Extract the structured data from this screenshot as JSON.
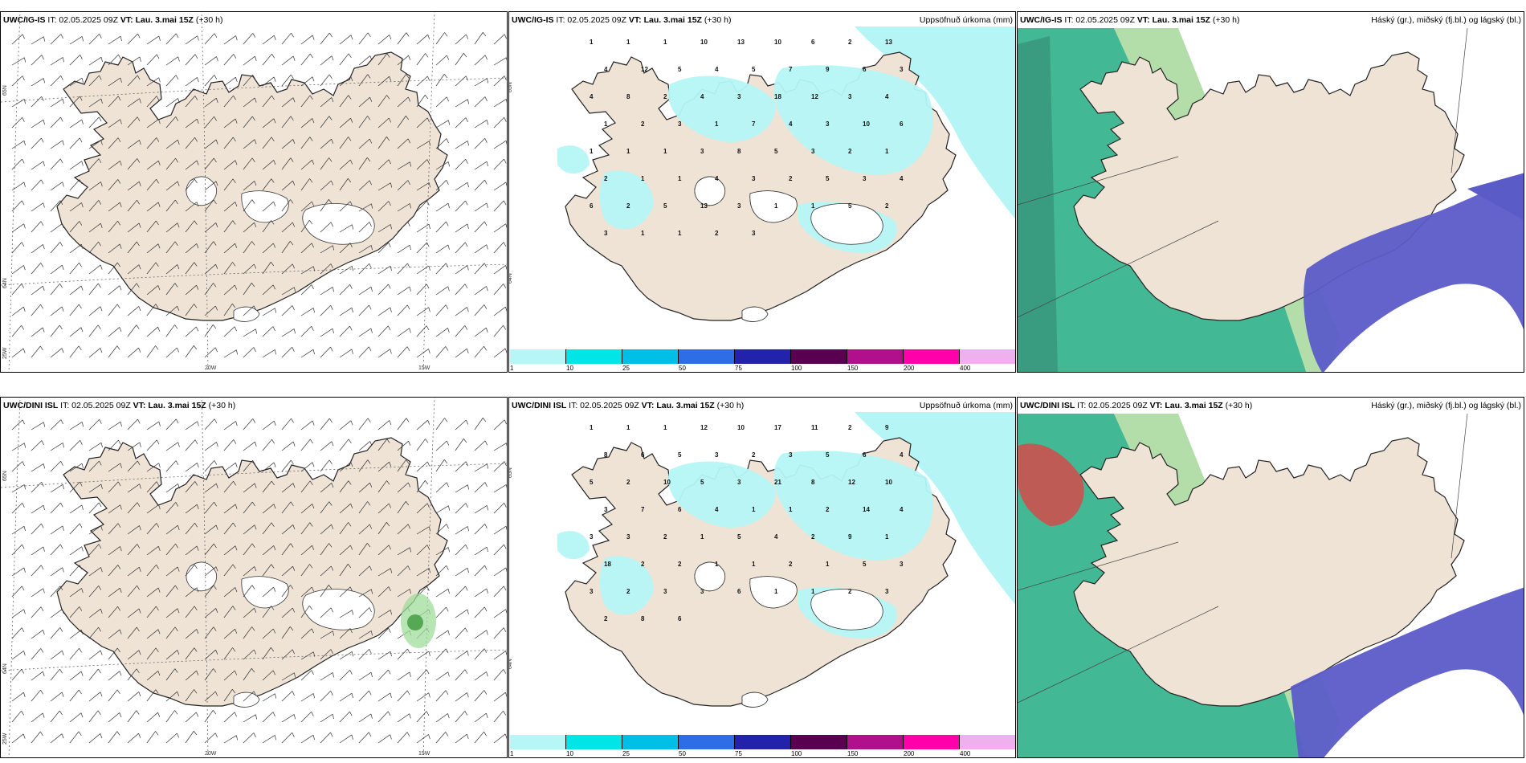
{
  "rows": [
    {
      "model": "UWC/IG-IS",
      "it_label": "IT: 02.05.2025 09Z",
      "vt_label": "VT: Lau. 3.mai 15Z",
      "lead": "(+30 h)"
    },
    {
      "model": "UWC/DINI ISL",
      "it_label": "IT: 02.05.2025 09Z",
      "vt_label": "VT: Lau. 3.mai 15Z",
      "lead": "(+30 h)"
    }
  ],
  "precip_title": "Uppsöfnuð úrkoma (mm)",
  "cloud_title": "Háský (gr.), miðský (fj.bl.) og lágský (bl.)",
  "lat_labels": [
    "65N",
    "64N"
  ],
  "lon_labels": [
    "25W",
    "20W",
    "15W"
  ],
  "colorbar": {
    "ticks": [
      "1",
      "10",
      "25",
      "50",
      "75",
      "100",
      "150",
      "200",
      "400"
    ],
    "colors": [
      "#b7f6f6",
      "#00e5e5",
      "#00bfe6",
      "#2d6ee6",
      "#2222aa",
      "#5a0050",
      "#b0108c",
      "#ff00aa",
      "#f0b0f0"
    ]
  },
  "colors": {
    "land": "#efe3d6",
    "ocean_precip": "#b5f5f5",
    "high_cloud": "#5b5bc8",
    "mid_cloud": "#2fb08a",
    "low_cloud": "#a6d89a",
    "red_cloud": "#d44"
  },
  "precip_values_top": [
    "1",
    "1",
    "1",
    "10",
    "13",
    "10",
    "6",
    "2",
    "13",
    "4",
    "12",
    "5",
    "4",
    "5",
    "7",
    "9",
    "6",
    "3",
    "4",
    "8",
    "2",
    "4",
    "3",
    "18",
    "12",
    "3",
    "4",
    "1",
    "2",
    "3",
    "1",
    "7",
    "4",
    "3",
    "10",
    "6",
    "1",
    "1",
    "1",
    "3",
    "8",
    "5",
    "3",
    "2",
    "1",
    "2",
    "1",
    "1",
    "4",
    "3",
    "2",
    "5",
    "3",
    "4",
    "6",
    "2",
    "5",
    "13",
    "3",
    "1",
    "1",
    "5",
    "2",
    "3",
    "1",
    "1",
    "2",
    "3"
  ],
  "precip_values_bottom": [
    "1",
    "1",
    "1",
    "12",
    "10",
    "17",
    "11",
    "2",
    "9",
    "8",
    "6",
    "5",
    "3",
    "2",
    "3",
    "5",
    "6",
    "4",
    "5",
    "2",
    "10",
    "5",
    "3",
    "21",
    "8",
    "12",
    "10",
    "3",
    "7",
    "6",
    "4",
    "1",
    "1",
    "2",
    "14",
    "4",
    "3",
    "3",
    "2",
    "1",
    "5",
    "4",
    "2",
    "9",
    "1",
    "18",
    "2",
    "2",
    "1",
    "1",
    "2",
    "1",
    "5",
    "3",
    "3",
    "2",
    "3",
    "3",
    "6",
    "1",
    "1",
    "2",
    "3",
    "2",
    "8",
    "6"
  ]
}
